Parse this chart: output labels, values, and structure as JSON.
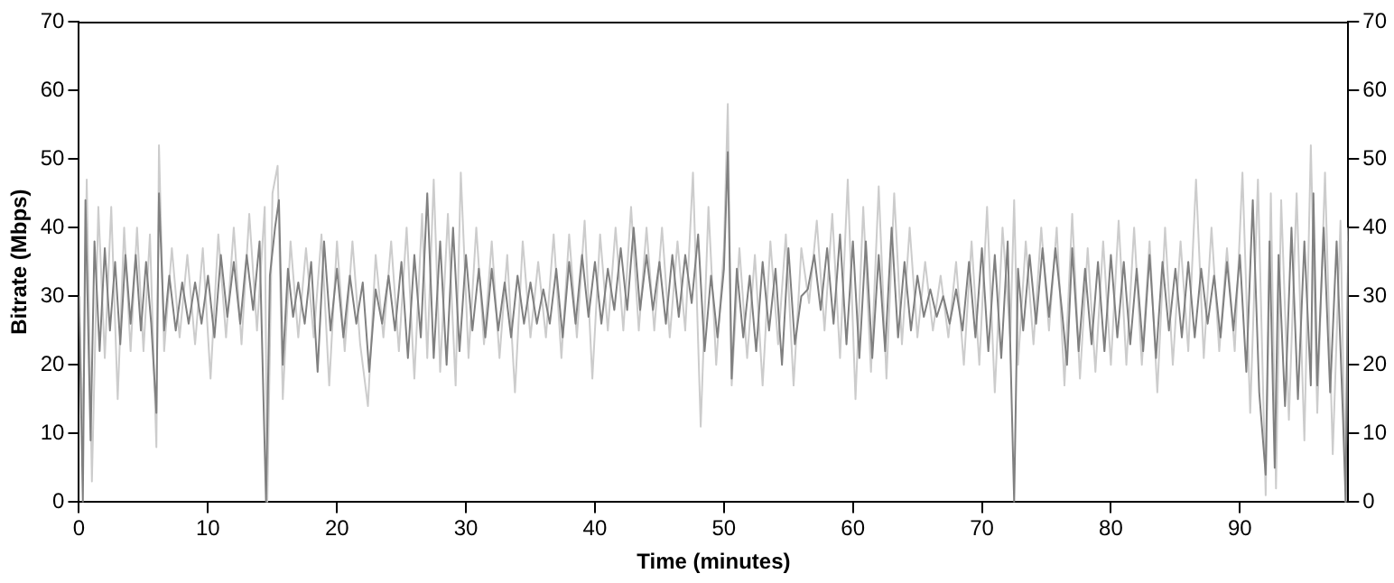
{
  "chart_data": {
    "type": "line",
    "xlabel": "Time (minutes)",
    "ylabel": "Bitrate (Mbps)",
    "xlim": [
      0,
      98.4
    ],
    "xticks": [
      0,
      10,
      20,
      30,
      40,
      50,
      60,
      70,
      80,
      90
    ],
    "ylim": [
      0,
      70
    ],
    "yticks": [
      0,
      10,
      20,
      30,
      40,
      50,
      60,
      70
    ],
    "y2lim": [
      0,
      70
    ],
    "y2ticks": [
      0,
      10,
      20,
      30,
      40,
      50,
      60,
      70
    ],
    "grid": false,
    "legend": false,
    "marker": "none",
    "line_style": "solid",
    "series": [
      {
        "color": "#cccccc",
        "x": [
          0,
          0.3,
          0.6,
          1.0,
          1.5,
          2.0,
          2.5,
          3.0,
          3.5,
          4.0,
          4.5,
          5.0,
          5.5,
          6.0,
          6.2,
          6.6,
          7.2,
          7.8,
          8.4,
          9.0,
          9.6,
          10.2,
          10.8,
          11.4,
          12.0,
          12.6,
          13.2,
          13.8,
          14.4,
          14.6,
          15.0,
          15.4,
          15.8,
          16.4,
          17.0,
          17.6,
          18.2,
          18.8,
          19.4,
          20.0,
          20.6,
          21.2,
          21.8,
          22.4,
          23.0,
          23.6,
          24.2,
          24.8,
          25.4,
          26.0,
          26.6,
          27.0,
          27.5,
          28.0,
          28.6,
          29.2,
          29.6,
          30.2,
          30.8,
          31.4,
          32.0,
          32.6,
          33.2,
          33.8,
          34.4,
          35.0,
          35.6,
          36.2,
          36.8,
          37.4,
          38.0,
          38.6,
          39.2,
          39.8,
          40.4,
          41.0,
          41.6,
          42.2,
          42.8,
          43.4,
          44.0,
          44.6,
          45.2,
          45.8,
          46.4,
          47.0,
          47.6,
          48.2,
          48.8,
          49.4,
          50.0,
          50.3,
          50.6,
          51.2,
          51.8,
          52.4,
          53.0,
          53.6,
          54.2,
          54.8,
          55.4,
          56.0,
          56.6,
          57.2,
          57.8,
          58.4,
          59.0,
          59.6,
          60.2,
          60.8,
          61.4,
          62.0,
          62.6,
          63.2,
          63.8,
          64.4,
          65.0,
          65.6,
          66.2,
          66.8,
          67.4,
          68.0,
          68.6,
          69.2,
          69.8,
          70.4,
          71.0,
          71.6,
          72.2,
          72.5,
          72.8,
          73.4,
          74.0,
          74.6,
          75.2,
          75.8,
          76.4,
          77.0,
          77.6,
          78.2,
          78.8,
          79.4,
          80.0,
          80.6,
          81.2,
          81.8,
          82.4,
          83.0,
          83.6,
          84.2,
          84.8,
          85.4,
          86.0,
          86.6,
          87.2,
          87.8,
          88.4,
          89.0,
          89.6,
          90.2,
          90.8,
          91.4,
          92.0,
          92.4,
          92.8,
          93.2,
          93.8,
          94.4,
          95.0,
          95.5,
          96.0,
          96.6,
          97.2,
          97.8,
          98.2,
          98.4
        ],
        "values": [
          30,
          10,
          47,
          3,
          43,
          21,
          43,
          15,
          40,
          22,
          40,
          22,
          39,
          8,
          52,
          22,
          37,
          24,
          36,
          23,
          37,
          18,
          39,
          24,
          40,
          23,
          42,
          25,
          43,
          0,
          45,
          49,
          15,
          38,
          24,
          37,
          24,
          39,
          17,
          38,
          22,
          38,
          23,
          14,
          36,
          24,
          38,
          22,
          40,
          18,
          42,
          21,
          47,
          19,
          42,
          17,
          48,
          21,
          40,
          23,
          38,
          21,
          36,
          16,
          38,
          24,
          35,
          24,
          39,
          21,
          39,
          24,
          41,
          18,
          39,
          25,
          40,
          25,
          43,
          25,
          40,
          25,
          40,
          24,
          38,
          25,
          48,
          11,
          43,
          20,
          37,
          58,
          17,
          37,
          21,
          36,
          17,
          38,
          23,
          39,
          17,
          37,
          29,
          41,
          25,
          42,
          21,
          47,
          15,
          43,
          19,
          46,
          18,
          45,
          23,
          40,
          24,
          35,
          25,
          33,
          24,
          35,
          20,
          38,
          20,
          43,
          16,
          40,
          24,
          44,
          20,
          38,
          23,
          40,
          25,
          40,
          17,
          42,
          18,
          37,
          19,
          38,
          20,
          41,
          20,
          40,
          20,
          38,
          16,
          40,
          20,
          38,
          22,
          47,
          21,
          40,
          22,
          37,
          22,
          48,
          13,
          47,
          1,
          45,
          2,
          44,
          12,
          45,
          9,
          52,
          13,
          48,
          7,
          41,
          0,
          40
        ]
      },
      {
        "color": "#808080",
        "x": [
          0,
          0.3,
          0.5,
          0.9,
          1.2,
          1.6,
          2.0,
          2.4,
          2.8,
          3.2,
          3.6,
          4.0,
          4.4,
          4.8,
          5.2,
          5.6,
          6.0,
          6.2,
          6.6,
          7.0,
          7.5,
          8.0,
          8.5,
          9.0,
          9.5,
          10.0,
          10.5,
          11.0,
          11.5,
          12.0,
          12.5,
          13.0,
          13.5,
          14.0,
          14.5,
          14.8,
          15.2,
          15.5,
          15.8,
          16.2,
          16.6,
          17.0,
          17.5,
          18.0,
          18.5,
          19.0,
          19.5,
          20.0,
          20.5,
          21.0,
          21.5,
          22.0,
          22.5,
          23.0,
          23.5,
          24.0,
          24.5,
          25.0,
          25.5,
          26.0,
          26.5,
          27.0,
          27.5,
          28.0,
          28.5,
          29.0,
          29.5,
          30.0,
          30.5,
          31.0,
          31.5,
          32.0,
          32.5,
          33.0,
          33.5,
          34.0,
          34.5,
          35.0,
          35.5,
          36.0,
          36.5,
          37.0,
          37.5,
          38.0,
          38.5,
          39.0,
          39.5,
          40.0,
          40.5,
          41.0,
          41.5,
          42.0,
          42.5,
          43.0,
          43.5,
          44.0,
          44.5,
          45.0,
          45.5,
          46.0,
          46.5,
          47.0,
          47.5,
          48.0,
          48.5,
          49.0,
          49.5,
          50.0,
          50.3,
          50.6,
          51.0,
          51.5,
          52.0,
          52.5,
          53.0,
          53.5,
          54.0,
          54.5,
          55.0,
          55.5,
          56.0,
          56.5,
          57.0,
          57.5,
          58.0,
          58.5,
          59.0,
          59.5,
          60.0,
          60.5,
          61.0,
          61.5,
          62.0,
          62.5,
          63.0,
          63.5,
          64.0,
          64.5,
          65.0,
          65.5,
          66.0,
          66.5,
          67.0,
          67.5,
          68.0,
          68.5,
          69.0,
          69.5,
          70.0,
          70.5,
          71.0,
          71.5,
          72.0,
          72.5,
          72.8,
          73.2,
          73.7,
          74.2,
          74.7,
          75.2,
          75.7,
          76.2,
          76.6,
          77.0,
          77.5,
          78.0,
          78.5,
          79.0,
          79.5,
          80.0,
          80.5,
          81.0,
          81.5,
          82.0,
          82.5,
          83.0,
          83.5,
          84.0,
          84.5,
          85.0,
          85.5,
          86.0,
          86.5,
          87.0,
          87.5,
          88.0,
          88.5,
          89.0,
          89.5,
          90.0,
          90.5,
          91.0,
          91.5,
          92.0,
          92.3,
          92.7,
          93.0,
          93.5,
          94.0,
          94.5,
          95.0,
          95.5,
          95.7,
          96.0,
          96.5,
          97.0,
          97.5,
          98.0,
          98.2,
          98.4
        ],
        "values": [
          30,
          0,
          44,
          9,
          38,
          22,
          37,
          25,
          35,
          23,
          36,
          26,
          36,
          25,
          35,
          26,
          13,
          45,
          25,
          33,
          25,
          32,
          26,
          32,
          26,
          33,
          24,
          36,
          27,
          35,
          26,
          36,
          28,
          38,
          0,
          33,
          40,
          44,
          20,
          34,
          27,
          32,
          26,
          35,
          19,
          38,
          25,
          34,
          24,
          33,
          26,
          32,
          19,
          31,
          26,
          33,
          25,
          35,
          21,
          36,
          24,
          45,
          21,
          38,
          20,
          40,
          22,
          36,
          25,
          34,
          24,
          34,
          25,
          32,
          24,
          33,
          26,
          32,
          26,
          31,
          26,
          34,
          24,
          35,
          26,
          36,
          27,
          35,
          26,
          34,
          28,
          37,
          28,
          40,
          28,
          36,
          28,
          35,
          26,
          36,
          27,
          36,
          29,
          39,
          22,
          33,
          24,
          34,
          51,
          18,
          34,
          24,
          33,
          22,
          35,
          25,
          34,
          20,
          37,
          23,
          30,
          31,
          36,
          28,
          37,
          26,
          39,
          23,
          38,
          21,
          38,
          21,
          36,
          22,
          40,
          24,
          35,
          25,
          33,
          27,
          31,
          27,
          30,
          26,
          31,
          25,
          35,
          24,
          37,
          22,
          36,
          21,
          38,
          0,
          34,
          25,
          36,
          26,
          37,
          27,
          37,
          28,
          20,
          37,
          22,
          34,
          23,
          35,
          22,
          36,
          24,
          35,
          23,
          34,
          22,
          36,
          21,
          35,
          25,
          34,
          24,
          35,
          24,
          34,
          26,
          33,
          24,
          35,
          25,
          36,
          19,
          44,
          16,
          4,
          38,
          5,
          36,
          14,
          40,
          15,
          38,
          17,
          45,
          17,
          40,
          16,
          38,
          12,
          0,
          38
        ]
      }
    ]
  }
}
